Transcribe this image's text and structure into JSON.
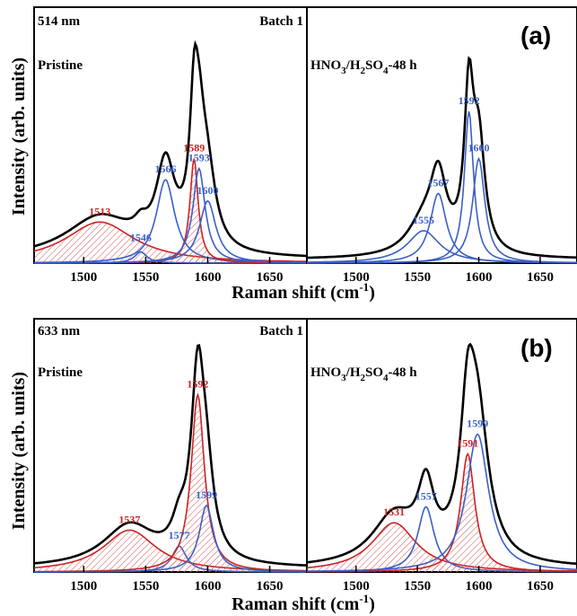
{
  "figure": {
    "ylabel": "Intensity (arb. units)",
    "xlabel_main": "Raman shift (cm",
    "xlabel_sup": "-1",
    "xlabel_end": ")",
    "x_ticks": [
      "1500",
      "1550",
      "1600",
      "1650"
    ]
  },
  "colors": {
    "black": "#000000",
    "red": "#cc2222",
    "blue": "#3a5fc8",
    "hatch": "#d46a6a"
  },
  "chart_data": [
    {
      "type": "line",
      "panel": "(a)",
      "laser": "514 nm",
      "batch": "Batch 1",
      "xlim": [
        1460,
        1680
      ],
      "subpanels": [
        {
          "label": "Pristine",
          "envelope": {
            "baseline": 0.02,
            "peaks": []
          },
          "peaks": [
            {
              "center": 1513,
              "label": "1513",
              "color": "red",
              "height": 0.165,
              "hwhm": 34,
              "filled": true
            },
            {
              "center": 1546,
              "label": "1546",
              "color": "blue",
              "height": 0.045,
              "hwhm": 6,
              "filled": false
            },
            {
              "center": 1566,
              "label": "1566",
              "color": "blue",
              "height": 0.335,
              "hwhm": 9,
              "filled": false
            },
            {
              "center": 1589,
              "label": "1589",
              "color": "red",
              "height": 0.42,
              "hwhm": 4,
              "filled": true
            },
            {
              "center": 1593,
              "label": "1593",
              "color": "blue",
              "height": 0.38,
              "hwhm": 6,
              "filled": false
            },
            {
              "center": 1600,
              "label": "1600",
              "color": "blue",
              "height": 0.25,
              "hwhm": 8,
              "filled": false
            }
          ]
        },
        {
          "label_main": "HNO",
          "label_sub1": "3",
          "label_mid": "/H",
          "label_sub2": "2",
          "label_tail": "SO",
          "label_sub3": "4",
          "label_end": "-48 h",
          "peaks": [
            {
              "center": 1555,
              "label": "1555",
              "color": "blue",
              "height": 0.13,
              "hwhm": 16,
              "filled": false
            },
            {
              "center": 1567,
              "label": "1567",
              "color": "blue",
              "height": 0.28,
              "hwhm": 8,
              "filled": false
            },
            {
              "center": 1592,
              "label": "1592",
              "color": "blue",
              "height": 0.61,
              "hwhm": 4.5,
              "filled": false
            },
            {
              "center": 1600,
              "label": "1600",
              "color": "blue",
              "height": 0.42,
              "hwhm": 6,
              "filled": false
            }
          ]
        }
      ]
    },
    {
      "type": "line",
      "panel": "(b)",
      "laser": "633 nm",
      "batch": "Batch 1",
      "xlim": [
        1460,
        1680
      ],
      "subpanels": [
        {
          "label": "Pristine",
          "peaks": [
            {
              "center": 1537,
              "label": "1537",
              "color": "red",
              "height": 0.17,
              "hwhm": 26,
              "filled": true
            },
            {
              "center": 1577,
              "label": "1577",
              "color": "blue",
              "height": 0.105,
              "hwhm": 7,
              "filled": false
            },
            {
              "center": 1592,
              "label": "1592",
              "color": "red",
              "height": 0.72,
              "hwhm": 6.5,
              "filled": true
            },
            {
              "center": 1599,
              "label": "1599",
              "color": "blue",
              "height": 0.27,
              "hwhm": 7,
              "filled": false
            }
          ]
        },
        {
          "label_main": "HNO",
          "label_sub1": "3",
          "label_mid": "/H",
          "label_sub2": "2",
          "label_tail": "SO",
          "label_sub3": "4",
          "label_end": "-48 h",
          "peaks": [
            {
              "center": 1531,
              "label": "1531",
              "color": "red",
              "height": 0.2,
              "hwhm": 22,
              "filled": true
            },
            {
              "center": 1557,
              "label": "1557",
              "color": "blue",
              "height": 0.265,
              "hwhm": 8,
              "filled": false
            },
            {
              "center": 1591,
              "label": "1591",
              "color": "red",
              "height": 0.48,
              "hwhm": 7,
              "filled": true
            },
            {
              "center": 1599,
              "label": "1599",
              "color": "blue",
              "height": 0.56,
              "hwhm": 11,
              "filled": false
            }
          ]
        }
      ]
    }
  ]
}
